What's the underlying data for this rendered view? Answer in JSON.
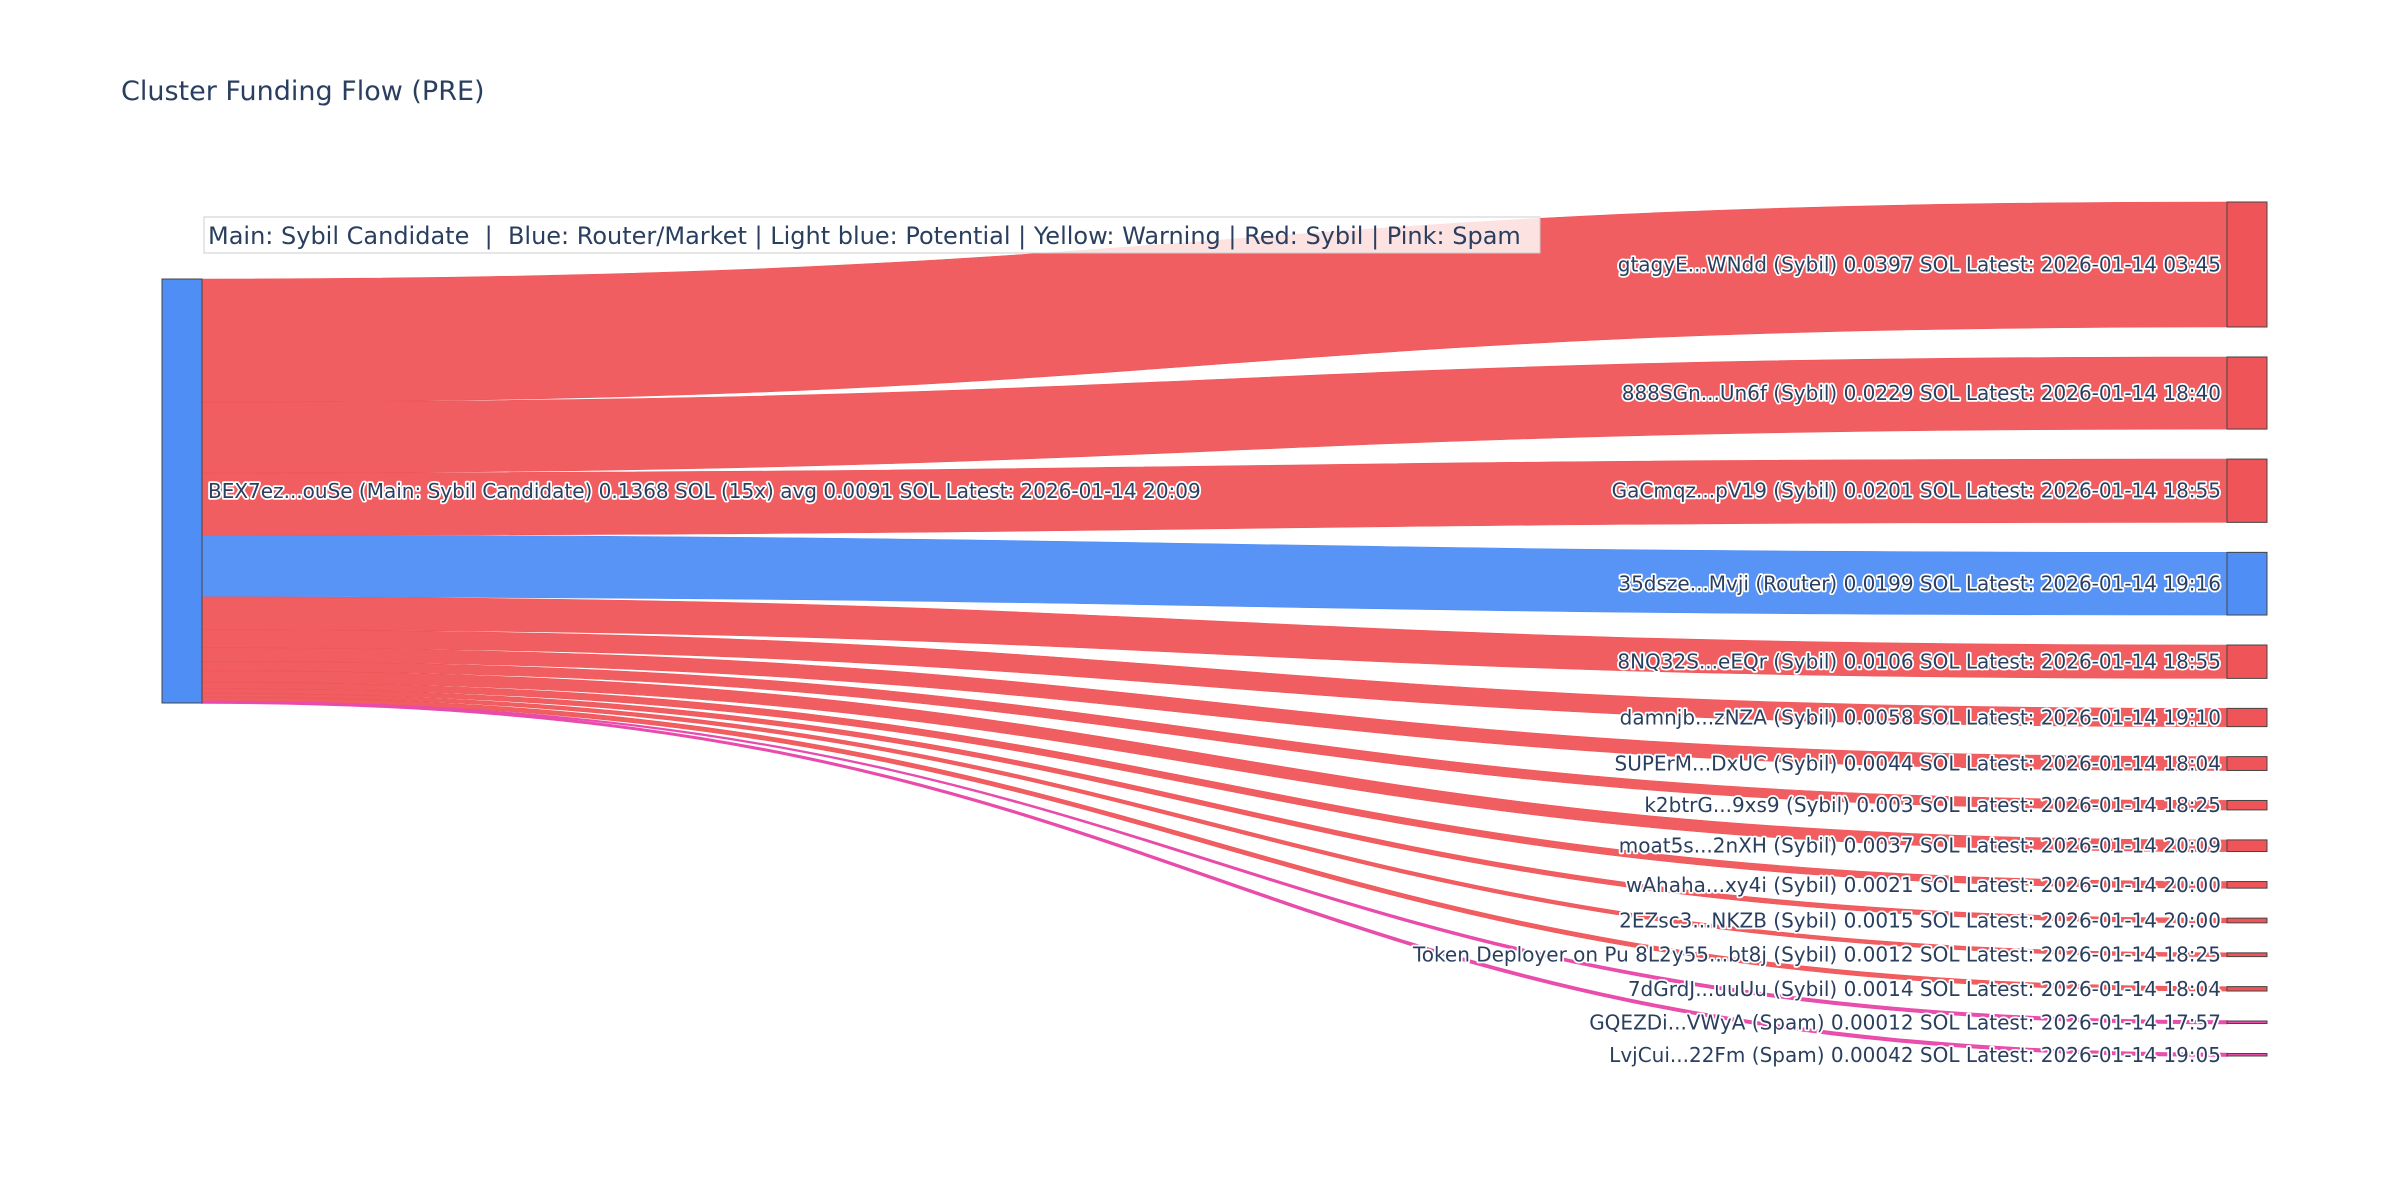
{
  "chart_data": {
    "type": "sankey",
    "title": "Cluster Funding Flow (PRE)",
    "legend_note": "Main: Sybil Candidate  |  Blue: Router/Market | Light blue: Potential | Yellow: Warning | Red: Sybil | Pink: Spam",
    "colors": {
      "main": "#4f8ef5",
      "router": "#4f8ef5",
      "sybil": "#ef5558",
      "spam": "#e94bab"
    },
    "source": {
      "label": "BEX7ez...ouSe (Main: Sybil Candidate) 0.1368 SOL (15x) avg 0.0091 SOL Latest: 2026-01-14 20:09",
      "value": 0.1368,
      "category": "main"
    },
    "targets": [
      {
        "label": "gtagyE...WNdd (Sybil) 0.0397 SOL Latest: 2026-01-14 03:45",
        "value": 0.0397,
        "category": "sybil"
      },
      {
        "label": "888SGn...Un6f (Sybil) 0.0229 SOL Latest: 2026-01-14 18:40",
        "value": 0.0229,
        "category": "sybil"
      },
      {
        "label": "GaCmqz...pV19 (Sybil) 0.0201 SOL Latest: 2026-01-14 18:55",
        "value": 0.0201,
        "category": "sybil"
      },
      {
        "label": "35dsze...Mvji (Router) 0.0199 SOL Latest: 2026-01-14 19:16",
        "value": 0.0199,
        "category": "router"
      },
      {
        "label": "8NQ32S...eEQr (Sybil) 0.0106 SOL Latest: 2026-01-14 18:55",
        "value": 0.0106,
        "category": "sybil"
      },
      {
        "label": "damnjb...zNZA (Sybil) 0.0058 SOL Latest: 2026-01-14 19:10",
        "value": 0.0058,
        "category": "sybil"
      },
      {
        "label": "SUPErM...DxUC (Sybil) 0.0044 SOL Latest: 2026-01-14 18:04",
        "value": 0.0044,
        "category": "sybil"
      },
      {
        "label": "k2btrG...9xs9 (Sybil) 0.003 SOL Latest: 2026-01-14 18:25",
        "value": 0.003,
        "category": "sybil"
      },
      {
        "label": "moat5s...2nXH (Sybil) 0.0037 SOL Latest: 2026-01-14 20:09",
        "value": 0.0037,
        "category": "sybil"
      },
      {
        "label": "wAhaha...xy4i (Sybil) 0.0021 SOL Latest: 2026-01-14 20:00",
        "value": 0.0021,
        "category": "sybil"
      },
      {
        "label": "2EZsc3...NKZB (Sybil) 0.0015 SOL Latest: 2026-01-14 20:00",
        "value": 0.0015,
        "category": "sybil"
      },
      {
        "label": "Token Deployer on Pu 8L2y55...bt8j (Sybil) 0.0012 SOL Latest: 2026-01-14 18:25",
        "value": 0.0012,
        "category": "sybil"
      },
      {
        "label": "7dGrdJ...uuUu (Sybil) 0.0014 SOL Latest: 2026-01-14 18:04",
        "value": 0.0014,
        "category": "sybil"
      },
      {
        "label": "GQEZDi...VWyA (Spam) 0.00012 SOL Latest: 2026-01-14 17:57",
        "value": 0.00012,
        "category": "spam"
      },
      {
        "label": "LvjCui...22Fm (Spam) 0.00042 SOL Latest: 2026-01-14 19:05",
        "value": 0.00042,
        "category": "spam"
      }
    ]
  }
}
